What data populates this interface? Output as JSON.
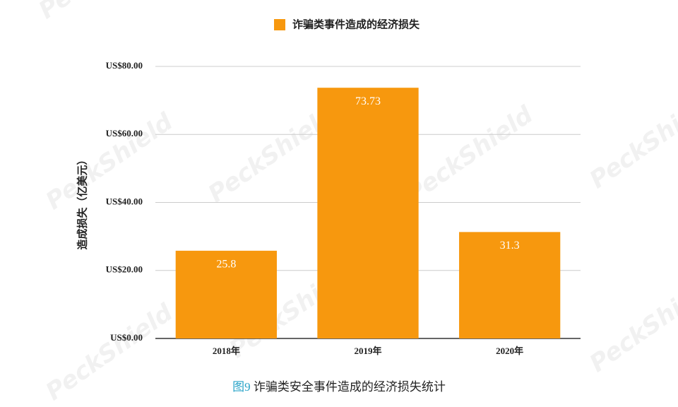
{
  "chart_data": {
    "type": "bar",
    "legend_label": "诈骗类事件造成的经济损失",
    "y_axis_label": "造成损失（亿美元）",
    "categories": [
      "2018年",
      "2019年",
      "2020年"
    ],
    "values": [
      25.8,
      73.73,
      31.3
    ],
    "color": "#f7980e",
    "ylim": [
      0,
      80
    ],
    "yticks": [
      {
        "value": 0,
        "label": "US$0.00"
      },
      {
        "value": 20,
        "label": "US$20.00"
      },
      {
        "value": 40,
        "label": "US$40.00"
      },
      {
        "value": 60,
        "label": "US$60.00"
      },
      {
        "value": 80,
        "label": "US$80.00"
      }
    ],
    "grid": true,
    "legend_position": "top",
    "caption_number": "图9",
    "caption": "诈骗类安全事件造成的经济损失统计",
    "watermark": "PeckShield"
  }
}
